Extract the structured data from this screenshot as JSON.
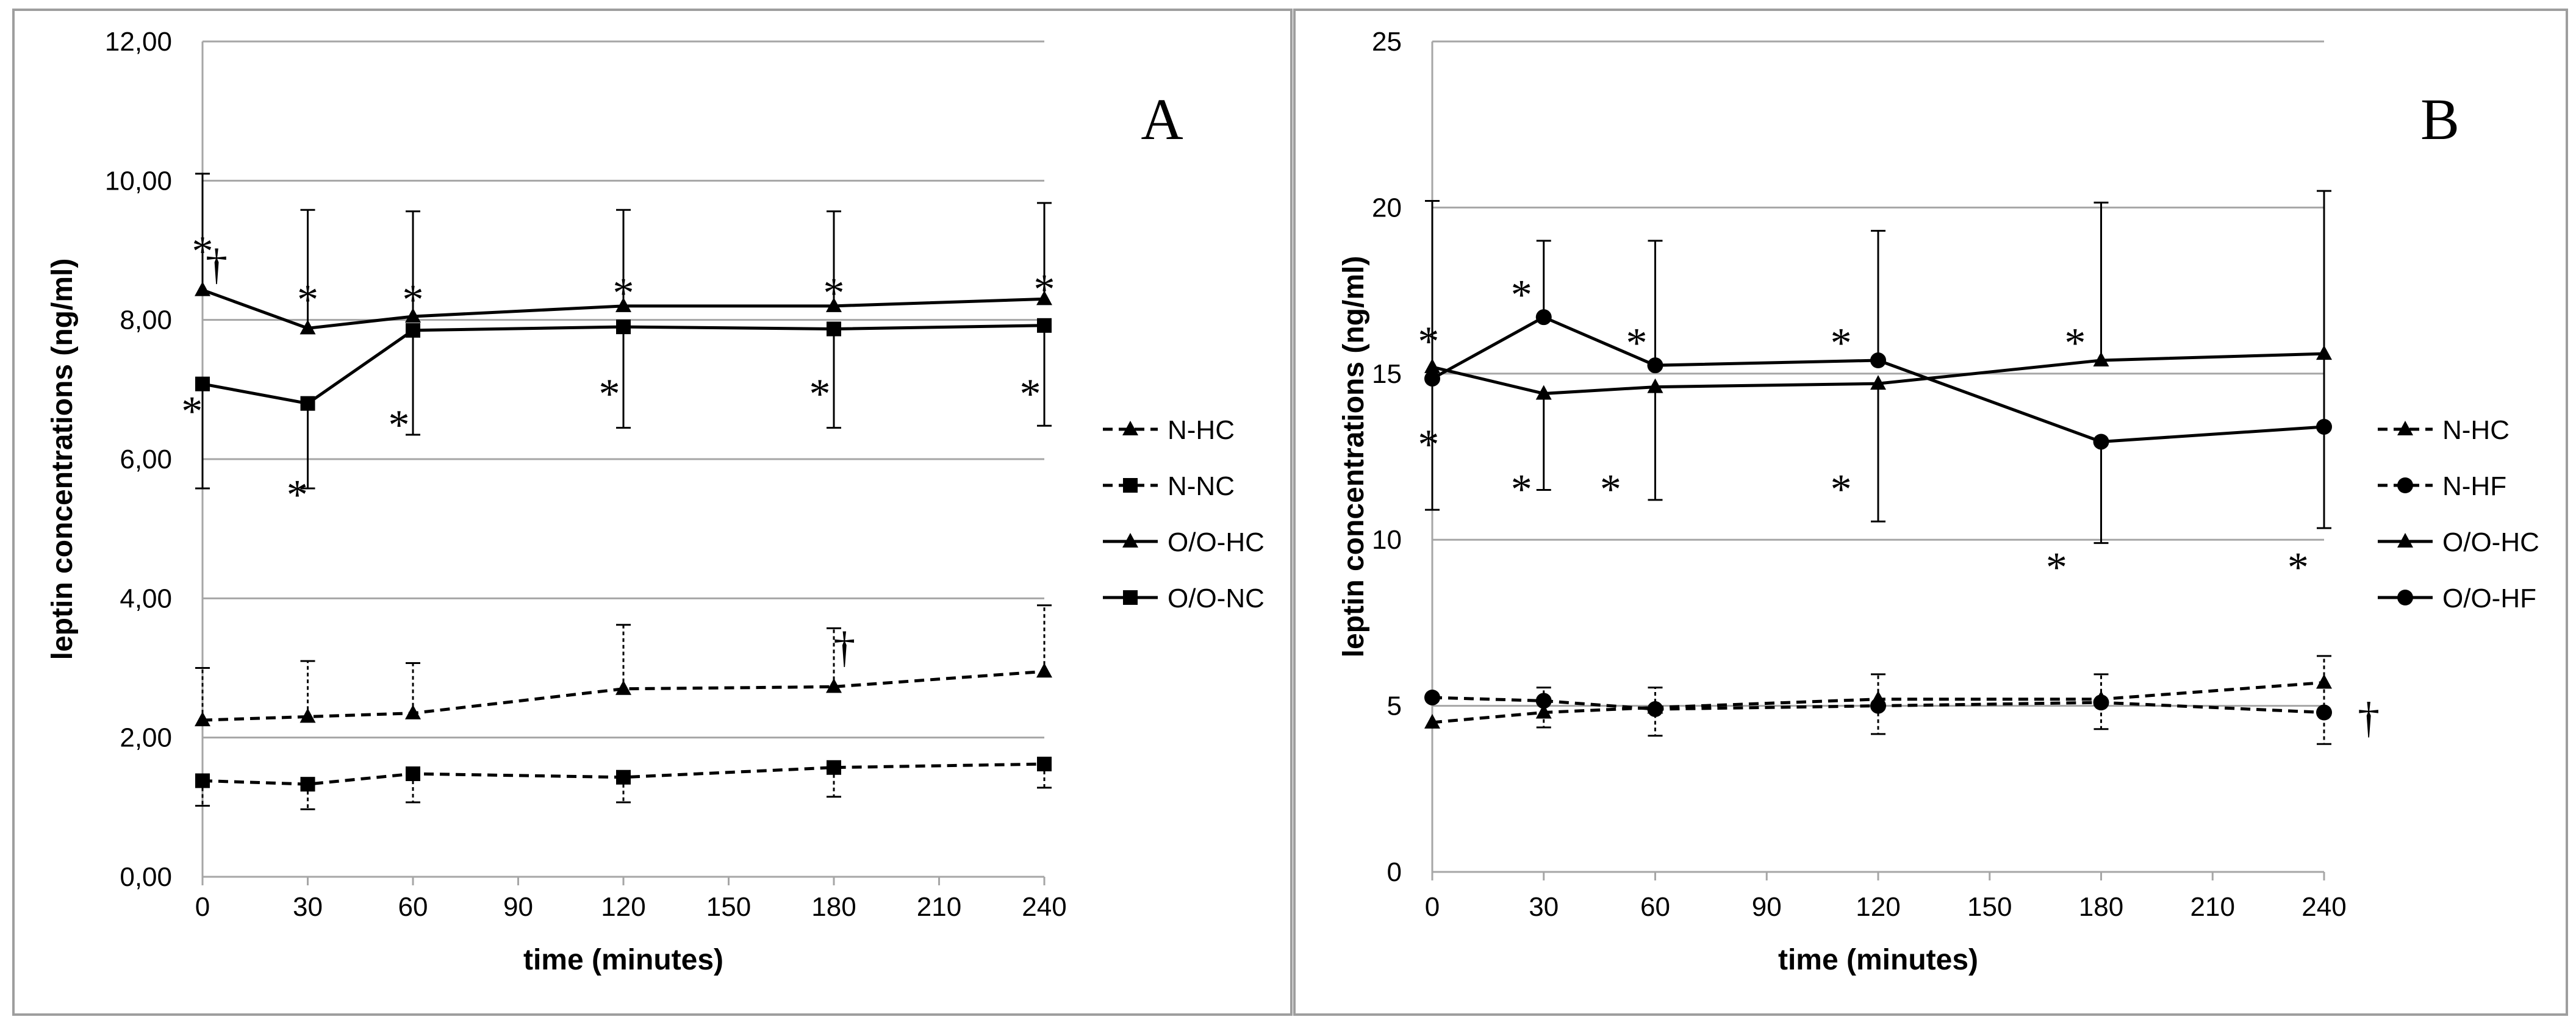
{
  "chart_data": [
    {
      "type": "line",
      "panel_label": "A",
      "title": "",
      "xlabel": "time (minutes)",
      "ylabel": "leptin concentrations (ng/ml)",
      "xlim": [
        0,
        240
      ],
      "ylim": [
        0,
        12
      ],
      "x_ticks": [
        0,
        30,
        60,
        90,
        120,
        150,
        180,
        210,
        240
      ],
      "x_tick_labels": [
        "0",
        "30",
        "60",
        "90",
        "120",
        "150",
        "180",
        "210",
        "240"
      ],
      "y_ticks": [
        0,
        2,
        4,
        6,
        8,
        10,
        12
      ],
      "y_tick_labels": [
        "0,00",
        "2,00",
        "4,00",
        "6,00",
        "8,00",
        "10,00",
        "12,00"
      ],
      "grid": "horizontal",
      "legend_position": "right",
      "series": [
        {
          "name": "N-HC",
          "line_style": "dashed",
          "marker": "triangle",
          "x": [
            0,
            30,
            60,
            120,
            180,
            240
          ],
          "values": [
            2.25,
            2.3,
            2.35,
            2.7,
            2.73,
            2.95
          ],
          "error_high": [
            3.0,
            3.1,
            3.07,
            3.62,
            3.57,
            3.9
          ],
          "error_low": null
        },
        {
          "name": "N-NC",
          "line_style": "dashed",
          "marker": "square",
          "x": [
            0,
            30,
            60,
            120,
            180,
            240
          ],
          "values": [
            1.38,
            1.33,
            1.48,
            1.43,
            1.57,
            1.62
          ],
          "error_high": null,
          "error_low": [
            1.02,
            0.97,
            1.07,
            1.07,
            1.15,
            1.28
          ]
        },
        {
          "name": "O/O-HC",
          "line_style": "solid",
          "marker": "triangle",
          "x": [
            0,
            30,
            60,
            120,
            180,
            240
          ],
          "values": [
            8.43,
            7.88,
            8.05,
            8.2,
            8.2,
            8.3
          ],
          "error_high": [
            10.1,
            9.58,
            9.56,
            9.58,
            9.56,
            9.68
          ],
          "error_low": null
        },
        {
          "name": "O/O-NC",
          "line_style": "solid",
          "marker": "square",
          "x": [
            0,
            30,
            60,
            120,
            180,
            240
          ],
          "values": [
            7.08,
            6.8,
            7.85,
            7.9,
            7.87,
            7.92
          ],
          "error_high": null,
          "error_low": [
            5.58,
            5.58,
            6.35,
            6.45,
            6.45,
            6.48
          ]
        }
      ],
      "annotations": [
        {
          "text": "*",
          "x": 0,
          "y": 9.05
        },
        {
          "text": "†",
          "x": 4,
          "y": 8.85
        },
        {
          "text": "*",
          "x": 30,
          "y": 8.35
        },
        {
          "text": "*",
          "x": 60,
          "y": 8.35
        },
        {
          "text": "*",
          "x": 120,
          "y": 8.45
        },
        {
          "text": "*",
          "x": 180,
          "y": 8.45
        },
        {
          "text": "*",
          "x": 240,
          "y": 8.5
        },
        {
          "text": "*",
          "x": -3,
          "y": 6.75
        },
        {
          "text": "*",
          "x": 27,
          "y": 5.55
        },
        {
          "text": "*",
          "x": 56,
          "y": 6.55
        },
        {
          "text": "*",
          "x": 116,
          "y": 7.0
        },
        {
          "text": "*",
          "x": 176,
          "y": 7.0
        },
        {
          "text": "*",
          "x": 236,
          "y": 7.0
        },
        {
          "text": "†",
          "x": 183,
          "y": 3.35
        }
      ]
    },
    {
      "type": "line",
      "panel_label": "B",
      "title": "",
      "xlabel": "time (minutes)",
      "ylabel": "leptin concentrations (ng/ml)",
      "xlim": [
        0,
        240
      ],
      "ylim": [
        0,
        25
      ],
      "x_ticks": [
        0,
        30,
        60,
        90,
        120,
        150,
        180,
        210,
        240
      ],
      "x_tick_labels": [
        "0",
        "30",
        "60",
        "90",
        "120",
        "150",
        "180",
        "210",
        "240"
      ],
      "y_ticks": [
        0,
        5,
        10,
        15,
        20,
        25
      ],
      "y_tick_labels": [
        "0",
        "5",
        "10",
        "15",
        "20",
        "25"
      ],
      "grid": "horizontal",
      "legend_position": "right",
      "series": [
        {
          "name": "N-HC",
          "line_style": "dashed",
          "marker": "triangle",
          "x": [
            0,
            30,
            60,
            120,
            180,
            240
          ],
          "values": [
            4.5,
            4.8,
            4.95,
            5.2,
            5.2,
            5.7
          ],
          "error_high": [
            null,
            null,
            null,
            5.95,
            5.95,
            6.5
          ],
          "error_low": [
            null,
            4.35,
            4.1,
            4.15,
            4.3,
            3.85
          ]
        },
        {
          "name": "N-HF",
          "line_style": "dashed",
          "marker": "circle",
          "x": [
            0,
            30,
            60,
            120,
            180,
            240
          ],
          "values": [
            5.25,
            5.15,
            4.9,
            5.0,
            5.1,
            4.8
          ],
          "error_high": [
            null,
            5.55,
            5.55,
            null,
            null,
            null
          ],
          "error_low": null
        },
        {
          "name": "O/O-HC",
          "line_style": "solid",
          "marker": "triangle",
          "x": [
            0,
            30,
            60,
            120,
            180,
            240
          ],
          "values": [
            15.2,
            14.4,
            14.6,
            14.7,
            15.4,
            15.6
          ],
          "error_high": [
            null,
            null,
            null,
            null,
            20.15,
            20.5
          ],
          "error_low": [
            10.9,
            11.5,
            11.2,
            10.55,
            null,
            10.35
          ]
        },
        {
          "name": "O/O-HF",
          "line_style": "solid",
          "marker": "circle",
          "x": [
            0,
            30,
            60,
            120,
            180,
            240
          ],
          "values": [
            14.85,
            16.7,
            15.25,
            15.4,
            12.95,
            13.4
          ],
          "error_high": [
            20.2,
            19.0,
            19.0,
            19.3,
            null,
            null
          ],
          "error_low": [
            null,
            null,
            null,
            null,
            9.9,
            null
          ]
        }
      ],
      "annotations": [
        {
          "text": "*",
          "x": -1,
          "y": 16.1
        },
        {
          "text": "*",
          "x": -1,
          "y": 13.0
        },
        {
          "text": "*",
          "x": 24,
          "y": 17.5
        },
        {
          "text": "*",
          "x": 24,
          "y": 11.65
        },
        {
          "text": "*",
          "x": 55,
          "y": 16.05
        },
        {
          "text": "*",
          "x": 48,
          "y": 11.65
        },
        {
          "text": "*",
          "x": 110,
          "y": 16.05
        },
        {
          "text": "*",
          "x": 110,
          "y": 11.65
        },
        {
          "text": "*",
          "x": 173,
          "y": 16.05
        },
        {
          "text": "*",
          "x": 168,
          "y": 9.3
        },
        {
          "text": "*",
          "x": 233,
          "y": 9.3
        },
        {
          "text": "†",
          "x": 252,
          "y": 4.75
        }
      ]
    }
  ]
}
